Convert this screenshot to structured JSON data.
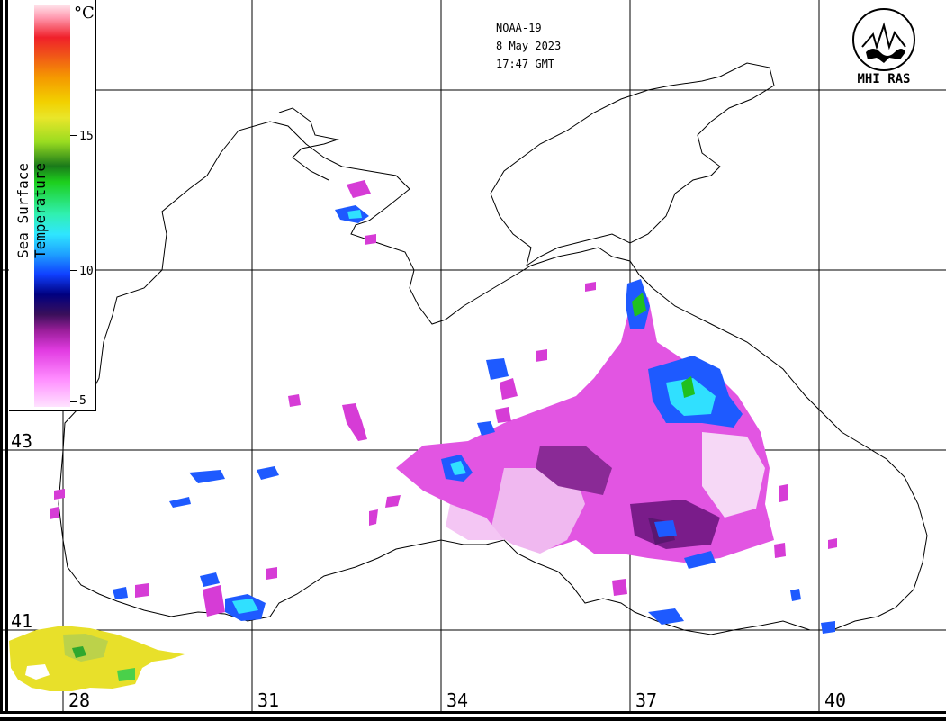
{
  "header": {
    "satellite": "NOAA-19",
    "date": "8 May 2023",
    "time": "17:47 GMT"
  },
  "logo": {
    "text": "MHI RAS"
  },
  "legend": {
    "title": "Sea Surface Temperature",
    "unit": "°C",
    "ticks": [
      "5",
      "10",
      "15"
    ]
  },
  "axes": {
    "longitude_labels": [
      "28",
      "31",
      "34",
      "37",
      "40"
    ],
    "latitude_labels": [
      "43",
      "41"
    ]
  },
  "colors": {
    "coast": "#000000",
    "grid": "#000000",
    "cold": "#d63cd6",
    "cold_deep": "#7a1c8a",
    "mid_blue": "#1e5aff",
    "cyan": "#30e0ff",
    "green": "#20c020",
    "warm_land_sea": "#e8e02a"
  }
}
